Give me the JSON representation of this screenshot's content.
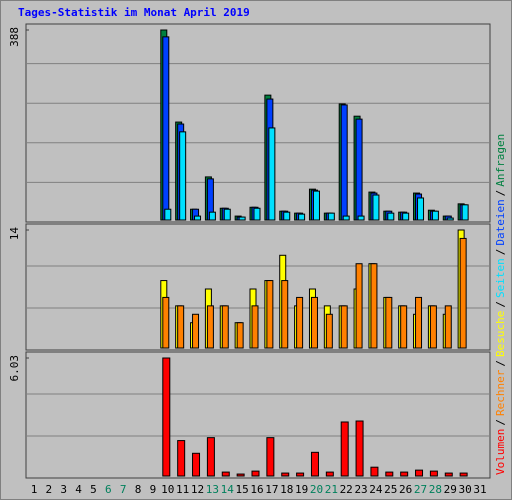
{
  "chart_data": {
    "type": "bar",
    "title": "Tages-Statistik im Monat April 2019",
    "categories": [
      1,
      2,
      3,
      4,
      5,
      6,
      7,
      8,
      9,
      10,
      11,
      12,
      13,
      14,
      15,
      16,
      17,
      18,
      19,
      20,
      21,
      22,
      23,
      24,
      25,
      26,
      27,
      28,
      29,
      30,
      31
    ],
    "weekends": [
      6,
      7,
      13,
      14,
      20,
      21,
      27,
      28
    ],
    "weekend_color": "#00805c",
    "label_color": "#000000",
    "legend_separator": "/",
    "panels": [
      {
        "ylim": [
          0,
          388
        ],
        "yticks": [
          388
        ],
        "series": [
          {
            "name": "Anfragen",
            "color": "#008040",
            "values": [
              0,
              0,
              0,
              0,
              0,
              0,
              0,
              0,
              0,
              388,
              200,
              22,
              88,
              24,
              8,
              26,
              255,
              18,
              14,
              63,
              14,
              237,
              212,
              57,
              18,
              16,
              55,
              20,
              8,
              33,
              0
            ]
          },
          {
            "name": "Dateien",
            "color": "#0040ff",
            "values": [
              0,
              0,
              0,
              0,
              0,
              0,
              0,
              0,
              0,
              374,
              196,
              22,
              84,
              24,
              6,
              26,
              247,
              18,
              14,
              61,
              14,
              235,
              206,
              55,
              18,
              16,
              53,
              18,
              8,
              31,
              0
            ]
          },
          {
            "name": "Seiten",
            "color": "#00e0ff",
            "values": [
              0,
              0,
              0,
              0,
              0,
              0,
              0,
              0,
              0,
              22,
              180,
              8,
              16,
              22,
              6,
              24,
              188,
              16,
              12,
              59,
              14,
              8,
              8,
              51,
              14,
              14,
              45,
              18,
              4,
              31,
              0
            ]
          }
        ]
      },
      {
        "ylim": [
          0,
          14
        ],
        "yticks": [
          14
        ],
        "series": [
          {
            "name": "Besuche",
            "color": "#ffff00",
            "values": [
              0,
              0,
              0,
              0,
              0,
              0,
              0,
              0,
              0,
              8,
              5,
              3,
              7,
              5,
              3,
              7,
              8,
              11,
              5,
              7,
              5,
              5,
              7,
              10,
              6,
              5,
              4,
              5,
              4,
              14,
              0
            ]
          },
          {
            "name": "Rechner",
            "color": "#ff8000",
            "values": [
              0,
              0,
              0,
              0,
              0,
              0,
              0,
              0,
              0,
              6,
              5,
              4,
              5,
              5,
              3,
              5,
              8,
              8,
              6,
              6,
              4,
              5,
              10,
              10,
              6,
              5,
              6,
              5,
              5,
              13,
              0
            ]
          }
        ]
      },
      {
        "ylim": [
          0,
          6.03
        ],
        "yticks": [
          6.03
        ],
        "series": [
          {
            "name": "Volumen",
            "color": "#ff0000",
            "values": [
              0,
              0,
              0,
              0,
              0,
              0,
              0,
              0,
              0,
              6.03,
              1.81,
              1.16,
              1.96,
              0.2,
              0.1,
              0.25,
              1.96,
              0.15,
              0.15,
              1.21,
              0.2,
              2.76,
              2.81,
              0.45,
              0.2,
              0.2,
              0.3,
              0.25,
              0.15,
              0.15,
              0
            ]
          }
        ]
      }
    ]
  }
}
